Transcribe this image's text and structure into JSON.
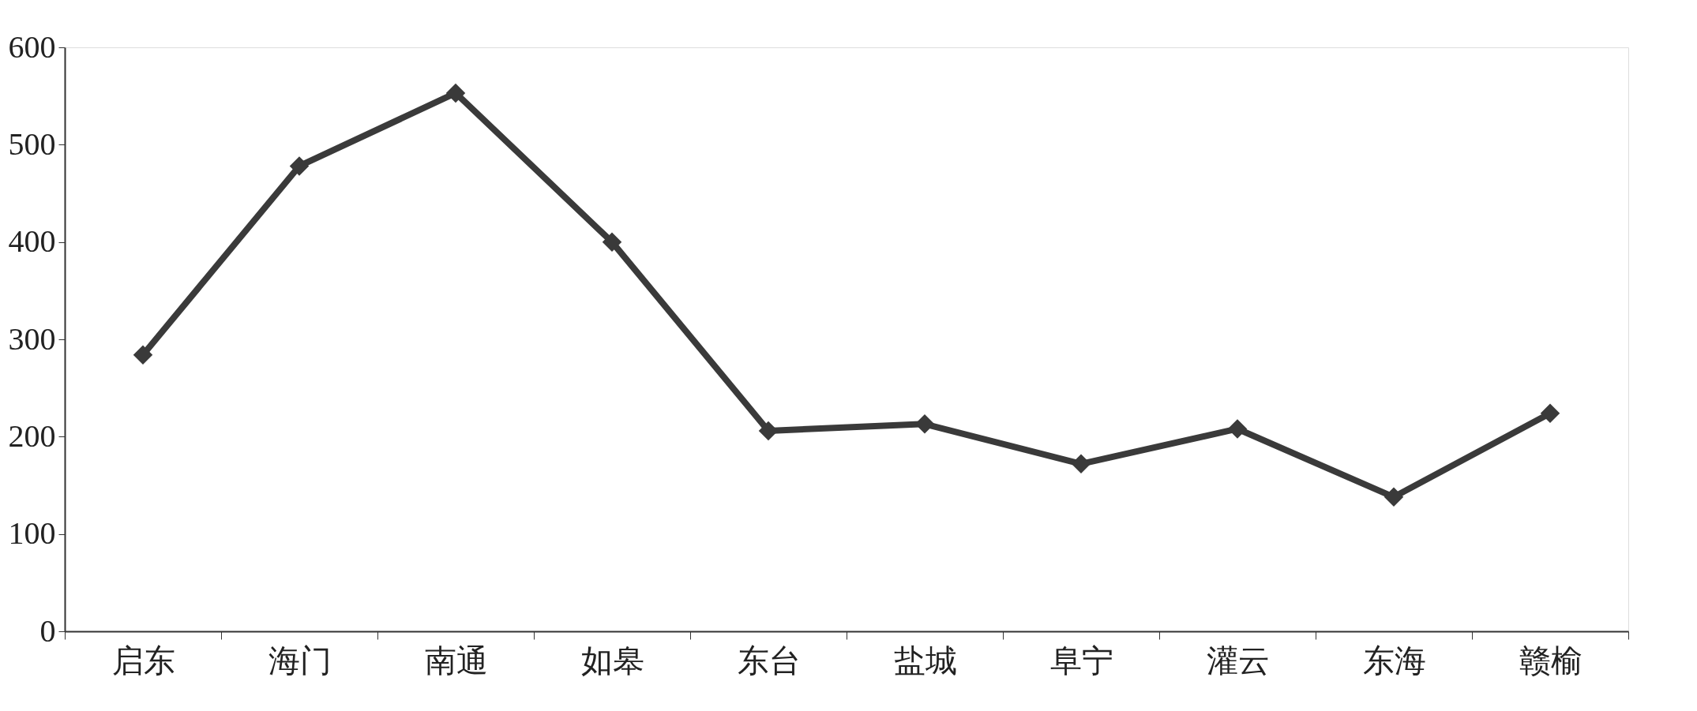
{
  "chart_data": {
    "type": "line",
    "categories": [
      "启东",
      "海门",
      "南通",
      "如皋",
      "东台",
      "盐城",
      "阜宁",
      "灌云",
      "东海",
      "赣榆"
    ],
    "series": [
      {
        "color": "#3a3a3a",
        "values": [
          284,
          478,
          553,
          400,
          206,
          213,
          172,
          208,
          138,
          224
        ]
      }
    ],
    "ylim": [
      0,
      600
    ],
    "yticks": [
      0,
      100,
      200,
      300,
      400,
      500,
      600
    ],
    "grid": false,
    "marker": "diamond",
    "line_style": "solid"
  }
}
